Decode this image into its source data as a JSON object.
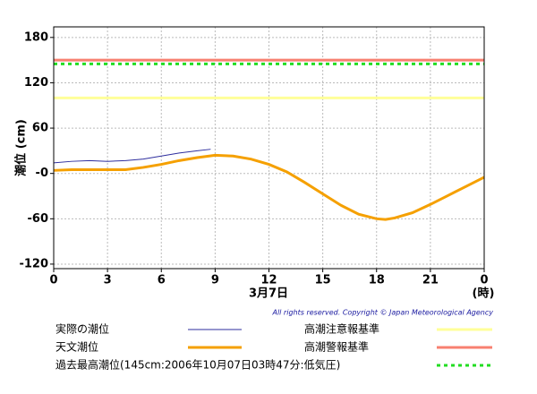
{
  "chart_data": {
    "type": "line",
    "y_label": "潮位 (cm)",
    "x_label": "(時)",
    "date_label": "3月7日",
    "copyright": "All rights reserved. Copyright © Japan Meteorological Agency",
    "xlim": [
      0,
      24
    ],
    "ylim": [
      -126,
      194
    ],
    "xticks": [
      0,
      3,
      6,
      9,
      12,
      15,
      18,
      21,
      {
        "value": 24,
        "label": "0"
      }
    ],
    "yticks": [
      -120,
      -60,
      {
        "value": 0,
        "label": "-0"
      },
      60,
      120,
      180
    ],
    "grid": true,
    "series": [
      {
        "name": "実際の潮位",
        "color": "#2e2e9e",
        "width": 1,
        "x": [
          0,
          1,
          2,
          3,
          4,
          5,
          6,
          7,
          8,
          8.75
        ],
        "values": [
          14,
          16,
          17,
          16,
          17,
          19,
          23,
          27,
          30,
          32
        ]
      },
      {
        "name": "天文潮位",
        "color": "#f5a000",
        "width": 3,
        "x": [
          0,
          1,
          2,
          3,
          4,
          5,
          6,
          7,
          8,
          9,
          10,
          11,
          12,
          13,
          14,
          15,
          16,
          17,
          18,
          18.5,
          19,
          20,
          21,
          22,
          23,
          24
        ],
        "values": [
          4,
          5,
          5,
          5,
          5,
          8,
          12,
          17,
          21,
          24,
          23,
          19,
          12,
          2,
          -12,
          -27,
          -42,
          -54,
          -60,
          -61,
          -59,
          -52,
          -41,
          -29,
          -17,
          -5
        ]
      }
    ],
    "reference_lines": [
      {
        "name": "高潮注意報基準",
        "value": 100,
        "color": "#ffff99",
        "dashed": false
      },
      {
        "name": "高潮警報基準",
        "value": 150,
        "color": "#f88070",
        "dashed": false
      },
      {
        "name": "過去最高潮位(145cm:2006年10月07日03時47分:低気圧)",
        "value": 145,
        "color": "#22dd22",
        "dashed": true
      }
    ]
  }
}
